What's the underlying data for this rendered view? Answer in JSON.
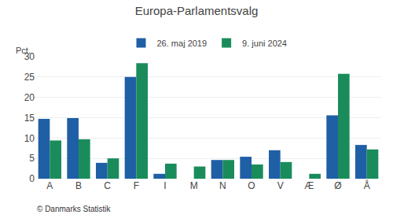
{
  "chart_data": {
    "type": "bar",
    "title": "Europa-Parlamentsvalg",
    "ylabel": "Pct.",
    "annotations": [
      "© Danmarks Statistik"
    ],
    "categories": [
      "A",
      "B",
      "C",
      "F",
      "I",
      "M",
      "N",
      "O",
      "V",
      "Æ",
      "Ø",
      "Å"
    ],
    "series": [
      {
        "name": "26. maj 2019",
        "color": "#1F5FA6",
        "values": [
          14.7,
          14.9,
          3.9,
          25.0,
          1.2,
          0,
          4.6,
          5.4,
          7.0,
          0,
          15.6,
          8.3
        ]
      },
      {
        "name": "9. juni 2024",
        "color": "#1A8C5B",
        "values": [
          9.4,
          9.7,
          5.0,
          28.4,
          3.7,
          3.0,
          4.6,
          3.5,
          4.1,
          1.2,
          25.8,
          7.2
        ]
      }
    ],
    "ylim": [
      0,
      30
    ],
    "yticks": [
      0,
      5,
      10,
      15,
      20,
      25,
      30
    ],
    "grid": true,
    "legend": "top"
  }
}
